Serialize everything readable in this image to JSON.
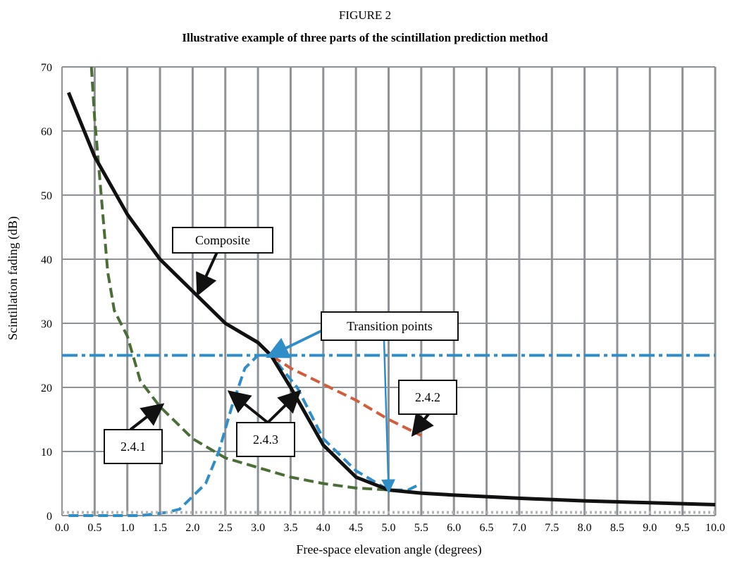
{
  "figure": {
    "label": "FIGURE 2",
    "title": "Illustrative example of three parts of the scintillation prediction method"
  },
  "chart_data": {
    "type": "line",
    "title": "Illustrative example of three parts of the scintillation prediction method",
    "xlabel": "Free-space elevation angle (degrees)",
    "ylabel": "Scintillation fading (dB)",
    "xlim": [
      0,
      10
    ],
    "ylim": [
      0,
      70
    ],
    "x_ticks": [
      "0.0",
      "0.5",
      "1.0",
      "1.5",
      "2.0",
      "2.5",
      "3.0",
      "3.5",
      "4.0",
      "4.5",
      "5.0",
      "5.5",
      "6.0",
      "6.5",
      "7.0",
      "7.5",
      "8.0",
      "8.5",
      "9.0",
      "9.5",
      "10.0"
    ],
    "y_ticks": [
      "0",
      "10",
      "20",
      "30",
      "40",
      "50",
      "60",
      "70"
    ],
    "grid": true,
    "series": [
      {
        "name": "2.4.1",
        "color": "#4a6e35",
        "style": "dashed",
        "x": [
          0.45,
          0.5,
          0.6,
          0.7,
          0.8,
          1.0,
          1.2,
          1.5,
          1.8,
          2.0,
          2.5,
          3.0,
          3.5,
          4.0,
          4.5,
          5.0
        ],
        "y": [
          70,
          62,
          50,
          38,
          32,
          28,
          21,
          17,
          14,
          12,
          9,
          7.5,
          6,
          5,
          4.3,
          4
        ]
      },
      {
        "name": "2.4.2",
        "color": "#d25d3c",
        "style": "dashed",
        "x": [
          0.1,
          0.5,
          1.0,
          1.5,
          2.0,
          2.5,
          3.0,
          3.2,
          3.5,
          4.0,
          4.5,
          5.0,
          5.5
        ],
        "y": [
          66,
          56,
          47,
          40,
          35,
          30,
          27,
          25,
          23,
          20.5,
          18,
          15,
          12.5
        ]
      },
      {
        "name": "2.4.3",
        "color": "#2f8ec8",
        "style": "dashed",
        "x": [
          0.1,
          0.8,
          1.2,
          1.6,
          1.8,
          2.0,
          2.2,
          2.4,
          2.6,
          2.8,
          3.0,
          3.2,
          3.6,
          4.0,
          4.5,
          5.0,
          5.3,
          5.5
        ],
        "y": [
          0,
          0,
          0,
          0.5,
          1,
          3,
          5,
          10,
          17,
          23,
          25,
          25,
          20,
          12,
          7,
          4,
          4,
          5
        ]
      },
      {
        "name": "Composite",
        "color": "#111111",
        "style": "solid",
        "x": [
          0.1,
          0.5,
          1.0,
          1.5,
          2.0,
          2.5,
          3.0,
          3.2,
          3.5,
          4.0,
          4.5,
          5.0,
          5.5,
          6.0,
          7.0,
          8.0,
          9.0,
          10.0
        ],
        "y": [
          66,
          56,
          47,
          40,
          35,
          30,
          27,
          25,
          20,
          11,
          6,
          4,
          3.5,
          3.2,
          2.7,
          2.3,
          2,
          1.7
        ]
      },
      {
        "name": "",
        "color": "#2f8ec8",
        "style": "dash-dot",
        "x": [
          0.0,
          10.0
        ],
        "y": [
          25,
          25
        ]
      },
      {
        "name": "",
        "color": "#b4b4b4",
        "style": "dotted",
        "x": [
          0.0,
          10.0
        ],
        "y": [
          0.5,
          0.5
        ]
      }
    ],
    "annotations": [
      {
        "text": "Composite",
        "arrow_to": [
          2.1,
          35
        ]
      },
      {
        "text": "Transition points",
        "arrow_to": [
          3.2,
          25
        ]
      },
      {
        "text": "2.4.1",
        "arrow_to": [
          1.5,
          17
        ]
      },
      {
        "text": "2.4.2",
        "arrow_to": [
          5.4,
          13
        ]
      },
      {
        "text": "2.4.3",
        "arrow_to": [
          2.6,
          19
        ]
      }
    ]
  }
}
